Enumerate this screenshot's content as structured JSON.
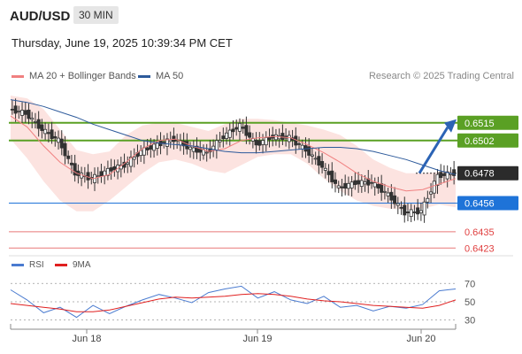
{
  "header": {
    "symbol": "AUD/USD",
    "interval": "30 MIN",
    "datetime": "Thursday, June 19, 2025 10:39:34 PM CET"
  },
  "legend": {
    "ma20_label": "MA 20 + Bollinger Bands",
    "ma20_color": "#f08080",
    "ma50_label": "MA 50",
    "ma50_color": "#2d5a9b",
    "research": "Research © 2025 Trading Central"
  },
  "rsi_legend": {
    "rsi_label": "RSI",
    "rsi_color": "#4a7bd0",
    "ma9_label": "9MA",
    "ma9_color": "#e02020"
  },
  "chart_data": [
    {
      "type": "line",
      "panel": "price",
      "x_ticks": [
        "Jun 18",
        "Jun 19",
        "Jun 20"
      ],
      "ylim": [
        0.6418,
        0.6535
      ],
      "key_levels": [
        {
          "value": 0.6515,
          "label": "0.6515",
          "kind": "resistance",
          "color": "#5aa024"
        },
        {
          "value": 0.6502,
          "label": "0.6502",
          "kind": "resistance",
          "color": "#5aa024"
        },
        {
          "value": 0.6478,
          "label": "0.6478",
          "kind": "last_price",
          "color": "#2b2b2b"
        },
        {
          "value": 0.6456,
          "label": "0.6456",
          "kind": "pivot",
          "color": "#1e73d8"
        },
        {
          "value": 0.6435,
          "label": "0.6435",
          "kind": "support",
          "color": "#e04040"
        },
        {
          "value": 0.6423,
          "label": "0.6423",
          "kind": "support",
          "color": "#e04040"
        }
      ],
      "series": [
        {
          "name": "MA 50",
          "values": [
            0.6532,
            0.653,
            0.6527,
            0.6523,
            0.6519,
            0.6514,
            0.651,
            0.6506,
            0.6502,
            0.65,
            0.6499,
            0.6498,
            0.6496,
            0.6494,
            0.6493,
            0.6493,
            0.6494,
            0.6495,
            0.6496,
            0.6497,
            0.6497,
            0.6496,
            0.6494,
            0.6491,
            0.6488,
            0.6484,
            0.648,
            0.6477
          ]
        },
        {
          "name": "MA 20",
          "values": [
            0.652,
            0.6512,
            0.6498,
            0.6486,
            0.6478,
            0.6474,
            0.6477,
            0.6486,
            0.6496,
            0.6502,
            0.6503,
            0.6498,
            0.6494,
            0.6496,
            0.6502,
            0.6504,
            0.6505,
            0.6504,
            0.6499,
            0.6493,
            0.6486,
            0.6478,
            0.6472,
            0.6468,
            0.6465,
            0.6466,
            0.647,
            0.6474
          ]
        },
        {
          "name": "Bollinger Upper",
          "values": [
            0.6535,
            0.6533,
            0.6525,
            0.651,
            0.6495,
            0.6492,
            0.6494,
            0.6506,
            0.6513,
            0.6515,
            0.6515,
            0.6512,
            0.6509,
            0.6514,
            0.6518,
            0.6518,
            0.6517,
            0.6515,
            0.6513,
            0.651,
            0.6506,
            0.6498,
            0.6488,
            0.6482,
            0.6478,
            0.6478,
            0.6479,
            0.648
          ]
        },
        {
          "name": "Bollinger Lower",
          "values": [
            0.6503,
            0.6489,
            0.6472,
            0.6458,
            0.645,
            0.645,
            0.6458,
            0.6468,
            0.6478,
            0.6486,
            0.6488,
            0.6485,
            0.648,
            0.6478,
            0.6484,
            0.649,
            0.6492,
            0.6492,
            0.6485,
            0.6474,
            0.6465,
            0.6458,
            0.6454,
            0.6452,
            0.6451,
            0.6452,
            0.6455,
            0.6453
          ]
        },
        {
          "name": "Price",
          "values": [
            0.6525,
            0.6522,
            0.651,
            0.6502,
            0.6478,
            0.6474,
            0.648,
            0.6484,
            0.6494,
            0.6499,
            0.6503,
            0.6496,
            0.6493,
            0.6505,
            0.6513,
            0.6499,
            0.6505,
            0.6504,
            0.6495,
            0.6483,
            0.6467,
            0.6471,
            0.6471,
            0.6462,
            0.6449,
            0.645,
            0.6476,
            0.6478
          ]
        }
      ],
      "projection": {
        "from": 0.6478,
        "to": 0.6515
      }
    },
    {
      "type": "line",
      "panel": "rsi",
      "y_ticks": [
        70,
        50,
        30
      ],
      "ylim": [
        20,
        78
      ],
      "series": [
        {
          "name": "RSI",
          "values": [
            63,
            52,
            38,
            44,
            33,
            46,
            37,
            45,
            52,
            58,
            54,
            49,
            60,
            64,
            67,
            54,
            61,
            52,
            48,
            56,
            44,
            46,
            40,
            45,
            43,
            47,
            62,
            64
          ]
        },
        {
          "name": "9MA",
          "values": [
            48,
            46,
            44,
            42,
            39,
            39,
            41,
            45,
            49,
            53,
            55,
            54,
            55,
            56,
            58,
            59,
            58,
            56,
            53,
            51,
            50,
            48,
            46,
            45,
            44,
            43,
            46,
            52
          ]
        }
      ]
    }
  ]
}
